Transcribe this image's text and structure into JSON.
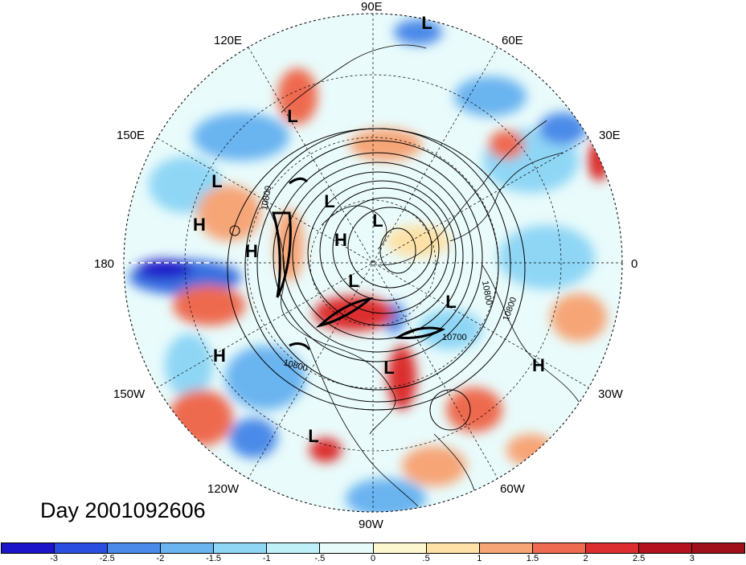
{
  "title": "Day 2001092606",
  "longitude_labels": {
    "lon_90e": "90E",
    "lon_60e": "60E",
    "lon_120e": "120E",
    "lon_30e": "30E",
    "lon_150e": "150E",
    "lon_0": "0",
    "lon_180": "180",
    "lon_150w": "150W",
    "lon_30w": "30W",
    "lon_120w": "120W",
    "lon_60w": "60W",
    "lon_90w": "90W"
  },
  "pressure_centers": [
    {
      "label": "L"
    },
    {
      "label": "L"
    },
    {
      "label": "L"
    },
    {
      "label": "L"
    },
    {
      "label": "L"
    },
    {
      "label": "L"
    },
    {
      "label": "L"
    },
    {
      "label": "L"
    },
    {
      "label": "L"
    },
    {
      "label": "H"
    },
    {
      "label": "H"
    },
    {
      "label": "H"
    },
    {
      "label": "H"
    },
    {
      "label": "H"
    }
  ],
  "contour_labels": [
    "10800",
    "10800",
    "10800",
    "10800",
    "10700"
  ],
  "colorbar": {
    "tick_labels": [
      "-3",
      "-2.5",
      "-2",
      "-1.5",
      "-1",
      "-.5",
      "0",
      ".5",
      "1",
      "1.5",
      "2",
      "2.5",
      "3"
    ],
    "colors": [
      "#1b14c8",
      "#2a4fe0",
      "#4b8ae8",
      "#6ab4f0",
      "#8fd6f5",
      "#bff0f8",
      "#e8fbfb",
      "#fdf7d0",
      "#fde1a6",
      "#f6a577",
      "#ee6a50",
      "#dc2e2e",
      "#b5121f",
      "#a0101a"
    ]
  }
}
